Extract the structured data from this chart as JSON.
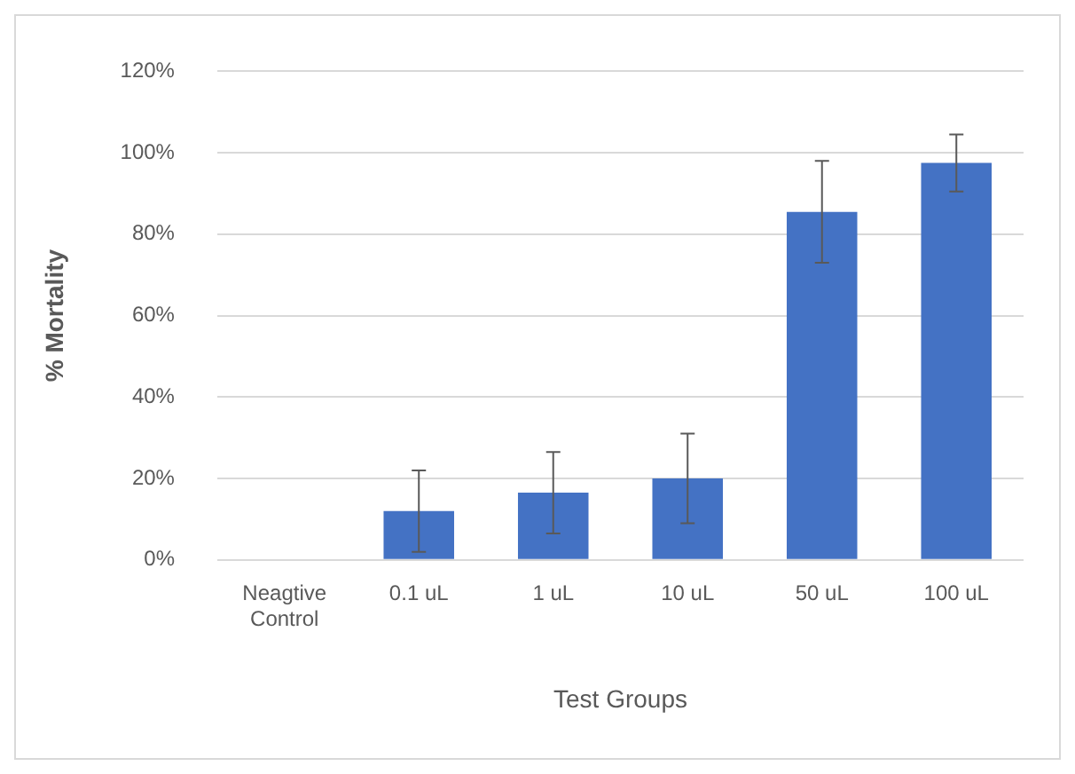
{
  "chart_data": {
    "type": "bar",
    "xlabel": "Test Groups",
    "ylabel": "% Mortality",
    "categories": [
      "Neagtive Control",
      "0.1 uL",
      "1 uL",
      "10 uL",
      "50 uL",
      "100 uL"
    ],
    "values": [
      0,
      12,
      16.5,
      20,
      85.5,
      97.5
    ],
    "color": "#4472c4",
    "errors": [
      null,
      10,
      10,
      11,
      12.5,
      7
    ],
    "ylim": [
      0,
      120
    ],
    "yticks": [
      {
        "value": 0,
        "label": "0%"
      },
      {
        "value": 20,
        "label": "20%"
      },
      {
        "value": 40,
        "label": "40%"
      },
      {
        "value": 60,
        "label": "60%"
      },
      {
        "value": 80,
        "label": "80%"
      },
      {
        "value": 100,
        "label": "100%"
      },
      {
        "value": 120,
        "label": "120%"
      }
    ],
    "grid": "y",
    "legend": false
  }
}
